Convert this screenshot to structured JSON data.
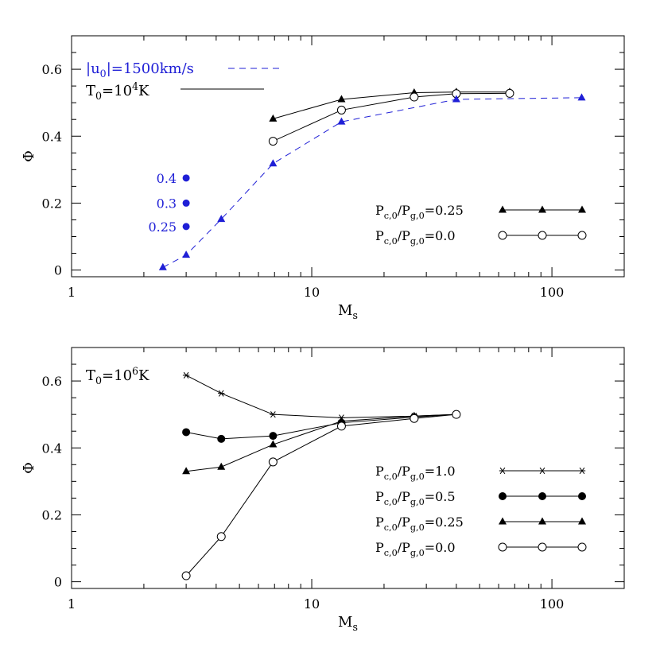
{
  "chart_data": [
    {
      "type": "line",
      "panel": "top",
      "xlabel": "M",
      "xlabel_sub": "s",
      "ylabel": "Φ",
      "xscale": "log",
      "xlim": [
        1,
        200
      ],
      "ylim": [
        -0.02,
        0.7
      ],
      "x_ticks": [
        {
          "value": 1,
          "label": "1"
        },
        {
          "value": 10,
          "label": "10"
        },
        {
          "value": 100,
          "label": "100"
        }
      ],
      "y_ticks": [
        {
          "value": 0,
          "label": "0"
        },
        {
          "value": 0.2,
          "label": "0.2"
        },
        {
          "value": 0.4,
          "label": "0.4"
        },
        {
          "value": 0.6,
          "label": "0.6"
        }
      ],
      "annotations": {
        "u0_label": "|u₀|=1500km/s",
        "t0_label": "T₀=10⁴K"
      },
      "series": [
        {
          "name": "P_c,0/P_g,0=0.25",
          "legend_label": "Pc,0/Pg,0=0.25",
          "color": "#000000",
          "marker": "filled-triangle",
          "line": "solid",
          "x": [
            6.9,
            13.3,
            26.7,
            40,
            66.7
          ],
          "y": [
            0.452,
            0.51,
            0.53,
            0.532,
            0.532
          ]
        },
        {
          "name": "P_c,0/P_g,0=0.0",
          "legend_label": "Pc,0/Pg,0=0.0",
          "color": "#000000",
          "marker": "open-circle",
          "line": "solid",
          "x": [
            6.9,
            13.3,
            26.7,
            40,
            66.7
          ],
          "y": [
            0.385,
            0.478,
            0.517,
            0.527,
            0.528
          ]
        },
        {
          "name": "|u0|=1500km/s",
          "color": "#1f1fd6",
          "marker": "filled-triangle",
          "line": "dashed",
          "x": [
            2.4,
            3.0,
            4.2,
            6.9,
            13.3,
            40,
            133
          ],
          "y": [
            0.008,
            0.045,
            0.152,
            0.318,
            0.443,
            0.51,
            0.515
          ]
        }
      ],
      "blue_points": [
        {
          "label": "0.4",
          "x": 3.0,
          "y": 0.275
        },
        {
          "label": "0.3",
          "x": 3.0,
          "y": 0.2
        },
        {
          "label": "0.25",
          "x": 3.0,
          "y": 0.13
        }
      ],
      "legend_placement": "lower-right"
    },
    {
      "type": "line",
      "panel": "bottom",
      "xlabel": "M",
      "xlabel_sub": "s",
      "ylabel": "Φ",
      "xscale": "log",
      "xlim": [
        1,
        200
      ],
      "ylim": [
        -0.02,
        0.7
      ],
      "x_ticks": [
        {
          "value": 1,
          "label": "1"
        },
        {
          "value": 10,
          "label": "10"
        },
        {
          "value": 100,
          "label": "100"
        }
      ],
      "y_ticks": [
        {
          "value": 0,
          "label": "0"
        },
        {
          "value": 0.2,
          "label": "0.2"
        },
        {
          "value": 0.4,
          "label": "0.4"
        },
        {
          "value": 0.6,
          "label": "0.6"
        }
      ],
      "annotations": {
        "t0_label": "T₀=10⁶K"
      },
      "series": [
        {
          "name": "P_c,0/P_g,0=1.0",
          "legend_label": "Pc,0/Pg,0=1.0",
          "color": "#000000",
          "marker": "star",
          "line": "solid",
          "x": [
            3.0,
            4.2,
            6.9,
            13.3,
            26.7,
            40
          ],
          "y": [
            0.617,
            0.563,
            0.5,
            0.49,
            0.495,
            0.5
          ]
        },
        {
          "name": "P_c,0/P_g,0=0.5",
          "legend_label": "Pc,0/Pg,0=0.5",
          "color": "#000000",
          "marker": "filled-circle",
          "line": "solid",
          "x": [
            3.0,
            4.2,
            6.9,
            13.3,
            26.7,
            40
          ],
          "y": [
            0.447,
            0.427,
            0.436,
            0.475,
            0.492,
            0.5
          ]
        },
        {
          "name": "P_c,0/P_g,0=0.25",
          "legend_label": "Pc,0/Pg,0=0.25",
          "color": "#000000",
          "marker": "filled-triangle",
          "line": "solid",
          "x": [
            3.0,
            4.2,
            6.9,
            13.3,
            26.7,
            40
          ],
          "y": [
            0.33,
            0.343,
            0.41,
            0.48,
            0.495,
            0.5
          ]
        },
        {
          "name": "P_c,0/P_g,0=0.0",
          "legend_label": "Pc,0/Pg,0=0.0",
          "color": "#000000",
          "marker": "open-circle",
          "line": "solid",
          "x": [
            3.0,
            4.2,
            6.9,
            13.3,
            26.7,
            40
          ],
          "y": [
            0.018,
            0.135,
            0.358,
            0.465,
            0.488,
            0.5
          ]
        }
      ],
      "legend_placement": "lower-right"
    }
  ]
}
